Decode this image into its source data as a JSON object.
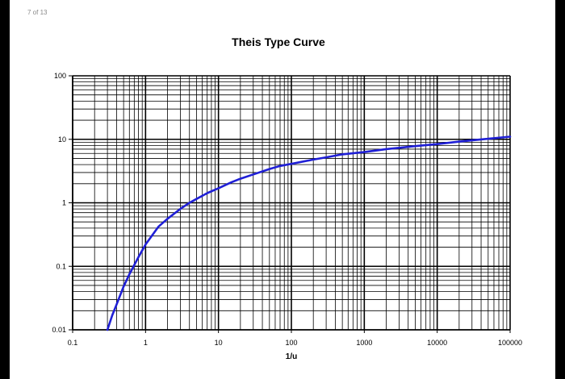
{
  "page_indicator": "7 of 13",
  "colors": {
    "curve": "#1f1fd6",
    "grid": "#000000",
    "background": "#ffffff"
  },
  "chart_data": {
    "type": "line",
    "title": "Theis Type Curve",
    "xlabel": "1/u",
    "ylabel": "",
    "xscale": "log",
    "yscale": "log",
    "xlim": [
      0.1,
      100000
    ],
    "ylim": [
      0.01,
      100
    ],
    "grid": true,
    "x_tick_labels": [
      "0.1",
      "1",
      "10",
      "100",
      "1000",
      "10000",
      "100000"
    ],
    "y_tick_labels": [
      "0.01",
      "0.1",
      "1",
      "10",
      "100"
    ],
    "series": [
      {
        "x": [
          0.3,
          0.35,
          0.4,
          0.5,
          0.6,
          0.8,
          1,
          1.5,
          2,
          3,
          4,
          5,
          7,
          10,
          15,
          20,
          30,
          50,
          70,
          100,
          200,
          300,
          500,
          1000,
          2000,
          5000,
          10000,
          20000,
          50000,
          100000
        ],
        "y": [
          0.01,
          0.017,
          0.025,
          0.048,
          0.075,
          0.14,
          0.22,
          0.42,
          0.56,
          0.8,
          1.0,
          1.15,
          1.42,
          1.7,
          2.1,
          2.4,
          2.8,
          3.4,
          3.8,
          4.1,
          4.8,
          5.2,
          5.8,
          6.3,
          7.0,
          7.8,
          8.4,
          9.2,
          10.2,
          11.0
        ]
      }
    ]
  }
}
